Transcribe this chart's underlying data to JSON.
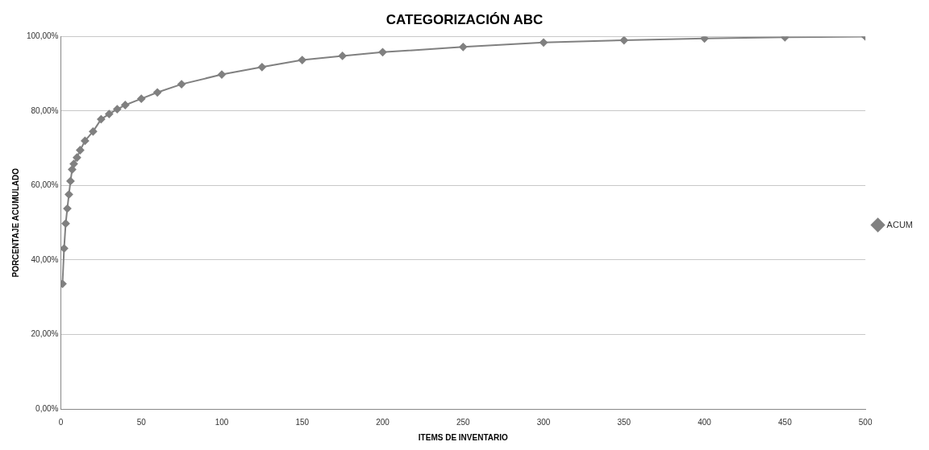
{
  "chart_data": {
    "type": "line",
    "title": "CATEGORIZACIÓN ABC",
    "xlabel": "ITEMS DE INVENTARIO",
    "ylabel": "PORCENTAJE ACUMULADO",
    "x": [
      1,
      2,
      3,
      4,
      5,
      6,
      7,
      8,
      10,
      12,
      15,
      20,
      25,
      30,
      35,
      40,
      50,
      60,
      75,
      100,
      125,
      150,
      175,
      200,
      250,
      300,
      350,
      400,
      450,
      500
    ],
    "series": [
      {
        "name": "ACUM",
        "color": "#808080",
        "values": [
          33.6,
          43.1,
          49.8,
          53.8,
          57.6,
          61.2,
          64.3,
          65.8,
          67.5,
          69.5,
          72,
          74.5,
          77.8,
          79.2,
          80.5,
          81.6,
          83.3,
          85,
          87.2,
          89.8,
          91.8,
          93.7,
          94.8,
          95.8,
          97.2,
          98.4,
          99,
          99.5,
          99.8,
          100
        ]
      }
    ],
    "xlim": [
      0,
      500
    ],
    "xticks": [
      0,
      50,
      100,
      150,
      200,
      250,
      300,
      350,
      400,
      450,
      500
    ],
    "ylim": [
      0,
      100
    ],
    "yticks": [
      {
        "value": 0,
        "label": "0,00%"
      },
      {
        "value": 20,
        "label": "20,00%"
      },
      {
        "value": 40,
        "label": "40,00%"
      },
      {
        "value": 60,
        "label": "60,00%"
      },
      {
        "value": 80,
        "label": "80,00%"
      },
      {
        "value": 100,
        "label": "100,00%"
      }
    ],
    "grid": "y",
    "legend": "right",
    "marker": "diamond",
    "line_style": "solid"
  }
}
